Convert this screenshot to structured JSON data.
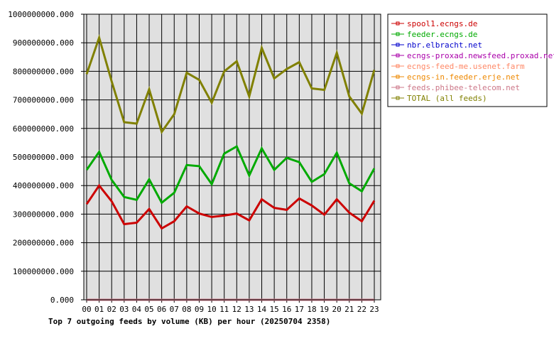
{
  "chart_data": {
    "type": "line",
    "title": "Top 7 outgoing feeds by volume (KB) per hour (20250704 2358)",
    "categories": [
      "00",
      "01",
      "02",
      "03",
      "04",
      "05",
      "06",
      "07",
      "08",
      "09",
      "10",
      "11",
      "12",
      "13",
      "14",
      "15",
      "16",
      "17",
      "18",
      "19",
      "20",
      "21",
      "22",
      "23"
    ],
    "ylim": [
      0,
      1000000000
    ],
    "y_ticks": [
      {
        "value": 0,
        "label": "0.000"
      },
      {
        "value": 100000000,
        "label": "100000000.000"
      },
      {
        "value": 200000000,
        "label": "200000000.000"
      },
      {
        "value": 300000000,
        "label": "300000000.000"
      },
      {
        "value": 400000000,
        "label": "400000000.000"
      },
      {
        "value": 500000000,
        "label": "500000000.000"
      },
      {
        "value": 600000000,
        "label": "600000000.000"
      },
      {
        "value": 700000000,
        "label": "700000000.000"
      },
      {
        "value": 800000000,
        "label": "800000000.000"
      },
      {
        "value": 900000000,
        "label": "900000000.000"
      },
      {
        "value": 1000000000,
        "label": "1000000000.000"
      }
    ],
    "grid": true,
    "legend_position": "right",
    "plot_background": "#e0e0e0",
    "series": [
      {
        "name": "spool1.ecngs.de",
        "color": "#cc0000",
        "values": [
          335000000,
          400000000,
          345000000,
          265000000,
          270000000,
          318000000,
          250000000,
          275000000,
          327000000,
          302000000,
          290000000,
          295000000,
          302000000,
          278000000,
          352000000,
          322000000,
          315000000,
          355000000,
          330000000,
          298000000,
          352000000,
          305000000,
          275000000,
          347000000
        ]
      },
      {
        "name": "feeder.ecngs.de",
        "color": "#00aa00",
        "values": [
          455000000,
          518000000,
          420000000,
          360000000,
          350000000,
          422000000,
          340000000,
          375000000,
          472000000,
          468000000,
          405000000,
          512000000,
          537000000,
          435000000,
          530000000,
          455000000,
          497000000,
          482000000,
          413000000,
          440000000,
          515000000,
          408000000,
          380000000,
          460000000
        ]
      },
      {
        "name": "nbr.elbracht.net",
        "color": "#0000cc",
        "values": [
          0,
          0,
          0,
          0,
          0,
          0,
          0,
          0,
          0,
          0,
          0,
          0,
          0,
          0,
          0,
          0,
          0,
          0,
          0,
          0,
          0,
          0,
          0,
          0
        ]
      },
      {
        "name": "ecngs-proxad.newsfeed.proxad.net",
        "color": "#aa00aa",
        "values": [
          0,
          0,
          0,
          0,
          0,
          0,
          0,
          0,
          0,
          0,
          0,
          0,
          0,
          0,
          0,
          0,
          0,
          0,
          0,
          0,
          0,
          0,
          0,
          0
        ]
      },
      {
        "name": "ecngs-feed-me.usenet.farm",
        "color": "#ff8866",
        "values": [
          0,
          0,
          0,
          0,
          0,
          0,
          0,
          0,
          0,
          0,
          0,
          0,
          0,
          0,
          0,
          0,
          0,
          0,
          0,
          0,
          0,
          0,
          0,
          0
        ]
      },
      {
        "name": "ecngs-in.feeder.erje.net",
        "color": "#ee8800",
        "values": [
          0,
          0,
          0,
          0,
          0,
          0,
          0,
          0,
          0,
          0,
          0,
          0,
          0,
          0,
          0,
          0,
          0,
          0,
          0,
          0,
          0,
          0,
          0,
          0
        ]
      },
      {
        "name": "feeds.phibee-telecom.net",
        "color": "#cc7788",
        "values": [
          0,
          0,
          0,
          0,
          0,
          0,
          0,
          0,
          0,
          0,
          0,
          0,
          0,
          0,
          0,
          0,
          0,
          0,
          0,
          0,
          0,
          0,
          0,
          0
        ]
      },
      {
        "name": "TOTAL (all feeds)",
        "color": "#808000",
        "values": [
          790000000,
          918000000,
          765000000,
          622000000,
          617000000,
          737000000,
          588000000,
          650000000,
          795000000,
          770000000,
          690000000,
          800000000,
          835000000,
          712000000,
          882000000,
          775000000,
          808000000,
          832000000,
          740000000,
          735000000,
          865000000,
          712000000,
          652000000,
          805000000
        ]
      }
    ]
  }
}
